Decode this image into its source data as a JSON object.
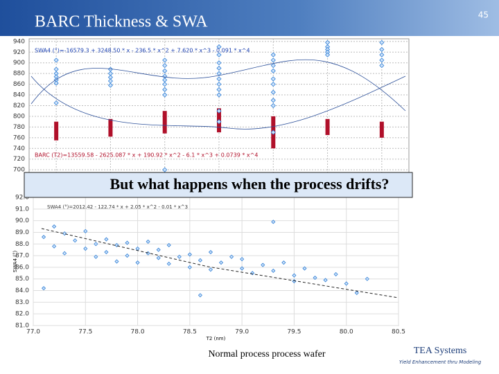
{
  "header": {
    "title": "BARC Thickness & SWA",
    "page_number": "45"
  },
  "callout": "But what happens when the process drifts?",
  "caption": "Normal process process wafer",
  "logo": {
    "name": "TEA Systems",
    "tagline": "Yield Enhancement thru Modeling"
  },
  "chart_data": [
    {
      "type": "strip",
      "annotations": [
        "SWA4 (°)=-16579.3 + 3248.50 * x - 236.5 * x^2 + 7.620 * x^3 - 0.091 * x^4",
        "BARC (T2)=13559.58 - 2625.087 * x + 190.92 * x^2 - 6.1 * x^3 + 0.0739 * x^4"
      ],
      "categories": [
        null,
        null,
        null,
        null,
        null,
        null,
        null
      ],
      "series": [
        {
          "color": "#2f7fd6",
          "values": [
            [
              905,
              888,
              880,
              874,
              868,
              862,
              825
            ],
            [
              888,
              880,
              873,
              866,
              858
            ],
            [
              905,
              895,
              885,
              875,
              868,
              860,
              850,
              840,
              700
            ],
            [
              930,
              915,
              900,
              890,
              880,
              870,
              860,
              850,
              840,
              810,
              790
            ],
            [
              915,
              905,
              895,
              885,
              870,
              860,
              845,
              830,
              820,
              770
            ],
            [
              938,
              930,
              925,
              920,
              915
            ],
            [
              938,
              925,
              915,
              905,
              895
            ]
          ]
        },
        {
          "color": "#b0102a",
          "values": [
            [
              755,
              790
            ],
            [
              762,
              795
            ],
            [
              768,
              810
            ],
            [
              770,
              815
            ],
            [
              740,
              800
            ],
            [
              765,
              795
            ],
            [
              760,
              790
            ]
          ]
        }
      ],
      "ylim": [
        695,
        945
      ],
      "yticks": [
        700,
        720,
        740,
        760,
        780,
        800,
        820,
        840,
        860,
        880,
        900,
        920,
        940
      ],
      "grid": true
    },
    {
      "type": "scatter",
      "annotations": [
        "SWA4 (°)=2012.42 - 122.74 * x + 2.05 * x^2 - 0.01 * x^3"
      ],
      "x_label": "T2 (nm)",
      "y_label": "SWA4 (°)",
      "color": "#2f7fd6",
      "x": [
        77.1,
        77.2,
        77.2,
        77.3,
        77.3,
        77.4,
        77.5,
        77.5,
        77.6,
        77.6,
        77.7,
        77.7,
        77.8,
        77.8,
        77.9,
        77.9,
        78.0,
        78.0,
        78.1,
        78.1,
        78.2,
        78.2,
        78.3,
        78.3,
        78.4,
        78.5,
        78.5,
        78.6,
        78.7,
        78.7,
        78.8,
        78.9,
        79.0,
        79.0,
        79.1,
        79.2,
        79.3,
        79.4,
        79.5,
        79.5,
        79.6,
        79.7,
        79.8,
        79.9,
        80.0,
        80.1,
        80.2,
        79.3,
        77.1,
        78.6
      ],
      "values": [
        88.6,
        89.5,
        87.8,
        88.9,
        87.2,
        88.3,
        89.1,
        87.6,
        88.0,
        86.9,
        88.4,
        87.3,
        87.9,
        86.5,
        88.1,
        87.0,
        87.6,
        86.4,
        87.2,
        88.2,
        86.8,
        87.5,
        86.3,
        87.9,
        86.9,
        87.1,
        86.0,
        86.6,
        87.3,
        85.8,
        86.4,
        86.9,
        85.9,
        86.7,
        85.5,
        86.2,
        85.7,
        86.4,
        85.3,
        84.8,
        85.9,
        85.1,
        84.9,
        85.4,
        84.6,
        83.8,
        85.0,
        89.9,
        84.2,
        83.6
      ],
      "xlim": [
        77,
        80.5
      ],
      "xticks": [
        {
          "value": 77,
          "label": "77.0"
        },
        77.5,
        {
          "value": 78,
          "label": "78.0"
        },
        78.5,
        {
          "value": 79,
          "label": "79.0"
        },
        79.5,
        {
          "value": 80,
          "label": "80.0"
        },
        80.5
      ],
      "ylim": [
        81,
        92
      ],
      "yticks": [
        {
          "value": 81,
          "label": "81.0"
        },
        {
          "value": 82,
          "label": "82.0"
        },
        {
          "value": 83,
          "label": "83.0"
        },
        {
          "value": 84,
          "label": "84.0"
        },
        {
          "value": 85,
          "label": "85.0"
        },
        {
          "value": 86,
          "label": "86.0"
        },
        {
          "value": 87,
          "label": "87.0"
        },
        {
          "value": 88,
          "label": "88.0"
        },
        {
          "value": 89,
          "label": "89.0"
        },
        {
          "value": 90,
          "label": "90.0"
        },
        {
          "value": 91,
          "label": "91.0"
        },
        {
          "value": 92,
          "label": "92.0"
        }
      ],
      "grid": true
    }
  ]
}
